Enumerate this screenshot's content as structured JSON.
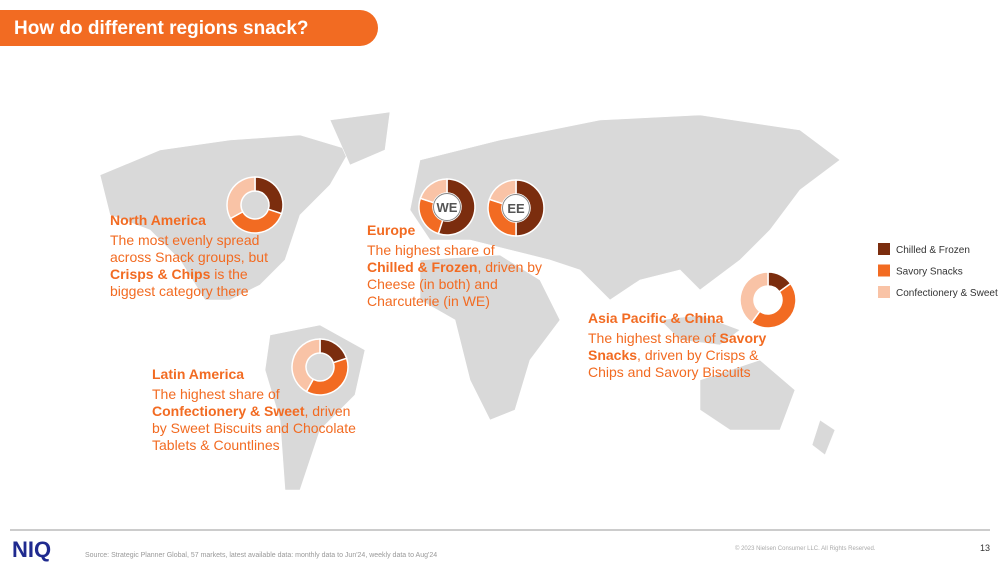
{
  "header": {
    "title": "How do different regions snack?"
  },
  "legend": {
    "items": [
      {
        "label": "Chilled & Frozen",
        "color": "#7b2d0e"
      },
      {
        "label": "Savory Snacks",
        "color": "#f26b22"
      },
      {
        "label": "Confectionery & Sweet",
        "color": "#f9c3a6"
      }
    ]
  },
  "regions": [
    {
      "title": "North America",
      "body": [
        {
          "text": "The most evenly spread across Snack groups, but ",
          "bold": false
        },
        {
          "text": "Crisps & Chips",
          "bold": true
        },
        {
          "text": " is the biggest category there",
          "bold": false
        }
      ],
      "donuts": [
        {
          "values": [
            30,
            37,
            33
          ]
        }
      ]
    },
    {
      "title": "Europe",
      "body": [
        {
          "text": "The highest share of ",
          "bold": false
        },
        {
          "text": "Chilled & Frozen",
          "bold": true
        },
        {
          "text": ", driven by Cheese (in both) and Charcuterie (in WE)",
          "bold": false
        }
      ],
      "donuts": [
        {
          "label": "WE",
          "values": [
            55,
            25,
            20
          ]
        },
        {
          "label": "EE",
          "values": [
            50,
            30,
            20
          ]
        }
      ]
    },
    {
      "title": "Latin America",
      "body": [
        {
          "text": "The highest share of ",
          "bold": false
        },
        {
          "text": "Confectionery & Sweet",
          "bold": true
        },
        {
          "text": ", driven by Sweet Biscuits and Chocolate Tablets & Countlines",
          "bold": false
        }
      ],
      "donuts": [
        {
          "values": [
            20,
            38,
            42
          ]
        }
      ]
    },
    {
      "title": "Asia Pacific & China",
      "body": [
        {
          "text": "The highest share of ",
          "bold": false
        },
        {
          "text": "Savory Snacks",
          "bold": true
        },
        {
          "text": ", driven by Crisps & Chips and Savory Biscuits",
          "bold": false
        }
      ],
      "donuts": [
        {
          "values": [
            15,
            45,
            40
          ]
        }
      ]
    }
  ],
  "footer": {
    "logo": "NIQ",
    "source": "Source: Strategic Planner Global, 57 markets, latest available data: monthly data to Jun'24, weekly data to Aug'24",
    "copyright": "© 2023 Nielsen Consumer LLC. All Rights Reserved.",
    "page": 13
  }
}
